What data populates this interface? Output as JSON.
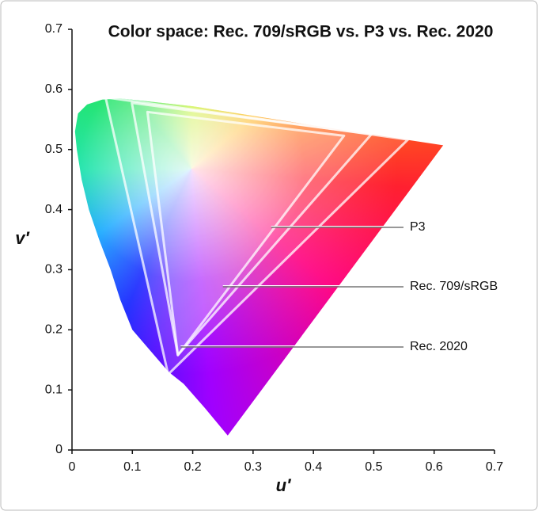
{
  "chart_data": {
    "type": "gamut",
    "title": "Color space: Rec. 709/sRGB vs. P3 vs. Rec. 2020",
    "x_label": "u′",
    "y_label": "v′",
    "xlim": [
      0,
      0.7
    ],
    "ylim": [
      0,
      0.7
    ],
    "xticks": [
      0,
      0.1,
      0.2,
      0.3,
      0.4,
      0.5,
      0.6,
      0.7
    ],
    "yticks": [
      0,
      0.1,
      0.2,
      0.3,
      0.4,
      0.5,
      0.6,
      0.7
    ],
    "locus": {
      "x": [
        0.258,
        0.22,
        0.185,
        0.16,
        0.13,
        0.1,
        0.08,
        0.064,
        0.045,
        0.028,
        0.016,
        0.008,
        0.005,
        0.01,
        0.025,
        0.05,
        0.08,
        0.2,
        0.4,
        0.615
      ],
      "values": [
        0.024,
        0.07,
        0.11,
        0.13,
        0.165,
        0.2,
        0.25,
        0.3,
        0.35,
        0.4,
        0.45,
        0.5,
        0.53,
        0.56,
        0.575,
        0.583,
        0.585,
        0.572,
        0.54,
        0.507
      ]
    },
    "series": [
      {
        "name": "P3",
        "x": [
          0.4964,
          0.0991,
          0.1754
        ],
        "values": [
          0.5256,
          0.5777,
          0.1579
        ]
      },
      {
        "name": "Rec. 709/sRGB",
        "x": [
          0.4507,
          0.125,
          0.1754
        ],
        "values": [
          0.5229,
          0.5625,
          0.1579
        ]
      },
      {
        "name": "Rec. 2020",
        "x": [
          0.5566,
          0.0556,
          0.1593
        ],
        "values": [
          0.5165,
          0.5868,
          0.1258
        ]
      }
    ]
  }
}
